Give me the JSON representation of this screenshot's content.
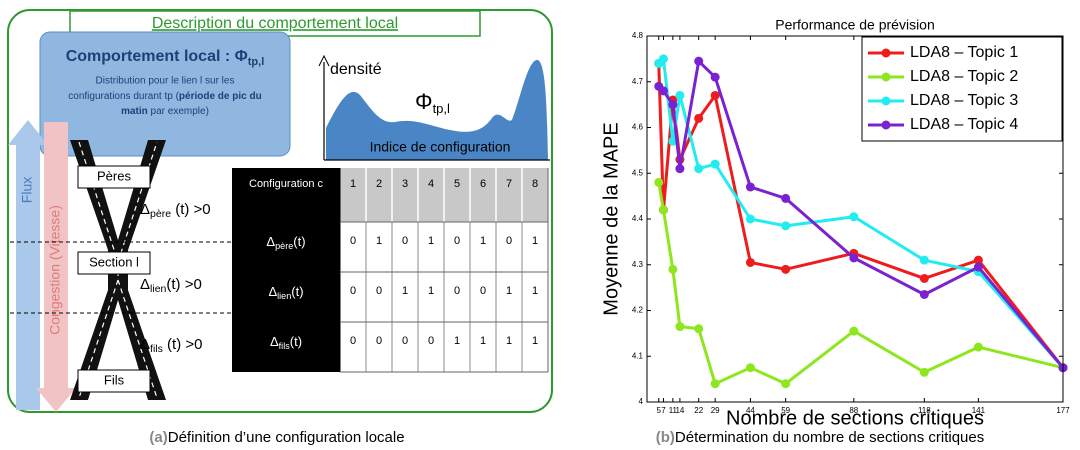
{
  "diagram": {
    "title": "Description du comportement local",
    "box_title": "Comportement local : Φ",
    "box_title_sub": "tp,l",
    "desc_parts": [
      "Distribution pour le lien l sur les",
      "configurations durant tp (",
      "période de pic du",
      "matin",
      " par exemple)"
    ],
    "density_label": "densité",
    "phi": "Φ",
    "phi_sub": "tp,l",
    "density_x_label": "Indice de configuration",
    "road_labels": [
      "Pères",
      "Section l",
      "Fils"
    ],
    "flux": "Flux",
    "congestion": "Congestion (Vitesse)",
    "deltas": [
      {
        "symbol": "Δ",
        "sub": "père",
        "suffix": " (t) >0"
      },
      {
        "symbol": "Δ",
        "sub": "lien",
        "suffix": "(t) >0"
      },
      {
        "symbol": "Δ",
        "sub": "fils",
        "suffix": " (t) >0"
      }
    ],
    "table": {
      "header": "Configuration c",
      "columns": [
        1,
        2,
        3,
        4,
        5,
        6,
        7,
        8
      ],
      "rows": [
        {
          "symbol": "Δ",
          "sub": "père",
          "suffix": "(t)",
          "values": [
            0,
            1,
            0,
            1,
            0,
            1,
            0,
            1
          ]
        },
        {
          "symbol": "Δ",
          "sub": "lien",
          "suffix": "(t)",
          "values": [
            0,
            0,
            1,
            1,
            0,
            0,
            1,
            1
          ]
        },
        {
          "symbol": "Δ",
          "sub": "fils",
          "suffix": "(t)",
          "values": [
            0,
            0,
            0,
            0,
            1,
            1,
            1,
            1
          ]
        }
      ]
    },
    "caption_tag": "(a)",
    "caption": "Définition d’une configuration locale"
  },
  "chart_data": {
    "type": "line",
    "title": "Performance de prévision",
    "x_label": "Nombre de sections critiques",
    "y_label": "Moyenne de la MAPE",
    "x": [
      5,
      7,
      11,
      14,
      22,
      29,
      44,
      59,
      88,
      118,
      141,
      177
    ],
    "series": [
      {
        "name": "LDA8 – Topic 1",
        "color": "#ee1c1c",
        "values": [
          4.74,
          4.42,
          4.66,
          4.53,
          4.62,
          4.67,
          4.305,
          4.29,
          4.325,
          4.27,
          4.31,
          4.075
        ]
      },
      {
        "name": "LDA8 – Topic 2",
        "color": "#8ee61e",
        "values": [
          4.48,
          4.42,
          4.29,
          4.165,
          4.16,
          4.04,
          4.075,
          4.04,
          4.155,
          4.065,
          4.12,
          4.075
        ]
      },
      {
        "name": "LDA8 – Topic 3",
        "color": "#22ecf0",
        "values": [
          4.74,
          4.75,
          4.57,
          4.67,
          4.51,
          4.52,
          4.4,
          4.385,
          4.405,
          4.31,
          4.285,
          4.075
        ]
      },
      {
        "name": "LDA8 – Topic 4",
        "color": "#7a22cf",
        "values": [
          4.69,
          4.68,
          4.65,
          4.51,
          4.745,
          4.71,
          4.47,
          4.445,
          4.315,
          4.235,
          4.295,
          4.075
        ]
      }
    ],
    "xlim": [
      0,
      177
    ],
    "xticks": [
      5,
      7,
      11,
      14,
      22,
      29,
      44,
      59,
      88,
      118,
      141,
      177
    ],
    "ylim": [
      4,
      4.8
    ],
    "yticks": [
      4,
      4.1,
      4.2,
      4.3,
      4.4,
      4.5,
      4.6,
      4.7,
      4.8
    ],
    "legend": "upper right",
    "caption_tag": "(b)",
    "caption": "Détermination du nombre de sections critiques"
  }
}
